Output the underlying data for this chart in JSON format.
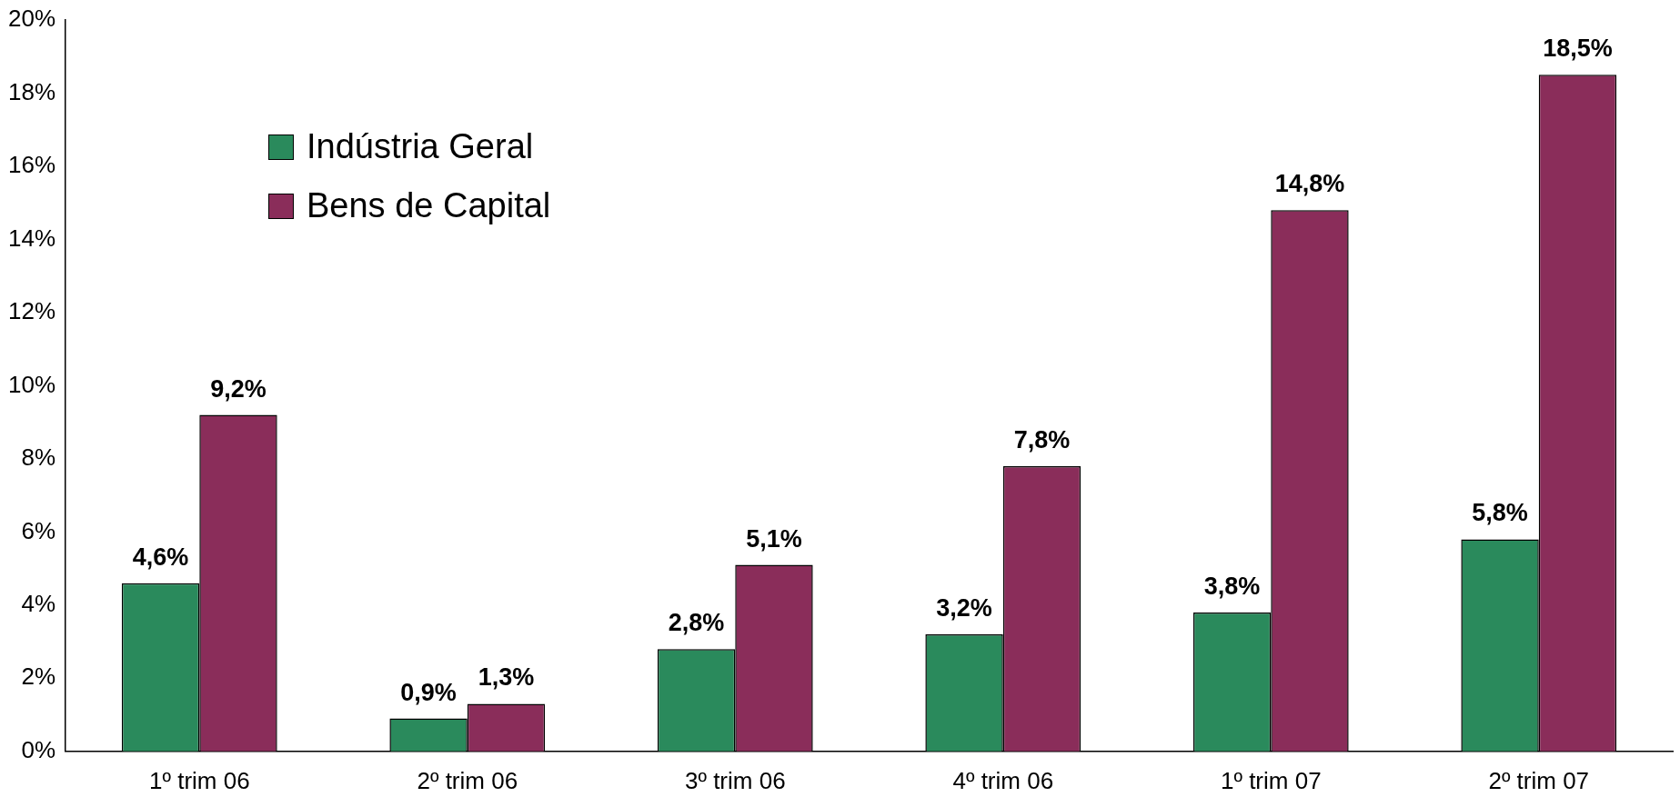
{
  "chart_data": {
    "type": "bar",
    "categories": [
      "1º trim 06",
      "2º trim 06",
      "3º trim 06",
      "4º trim 06",
      "1º trim 07",
      "2º trim 07"
    ],
    "series": [
      {
        "name": "Indústria Geral",
        "color": "#2a8a5c",
        "values": [
          4.6,
          0.9,
          2.8,
          3.2,
          3.8,
          5.8
        ],
        "value_labels": [
          "4,6%",
          "0,9%",
          "2,8%",
          "3,2%",
          "3,8%",
          "5,8%"
        ]
      },
      {
        "name": "Bens de Capital",
        "color": "#8a2d5a",
        "values": [
          9.2,
          1.3,
          5.1,
          7.8,
          14.8,
          18.5
        ],
        "value_labels": [
          "9,2%",
          "1,3%",
          "5,1%",
          "7,8%",
          "14,8%",
          "18,5%"
        ]
      }
    ],
    "ylim": [
      0,
      20
    ],
    "yticks": [
      {
        "value": 0,
        "label": "0%"
      },
      {
        "value": 2,
        "label": "2%"
      },
      {
        "value": 4,
        "label": "4%"
      },
      {
        "value": 6,
        "label": "6%"
      },
      {
        "value": 8,
        "label": "8%"
      },
      {
        "value": 10,
        "label": "10%"
      },
      {
        "value": 12,
        "label": "12%"
      },
      {
        "value": 14,
        "label": "14%"
      },
      {
        "value": 16,
        "label": "16%"
      },
      {
        "value": 18,
        "label": "18%"
      },
      {
        "value": 20,
        "label": "20%"
      }
    ],
    "grid": false,
    "legend": "top left"
  }
}
